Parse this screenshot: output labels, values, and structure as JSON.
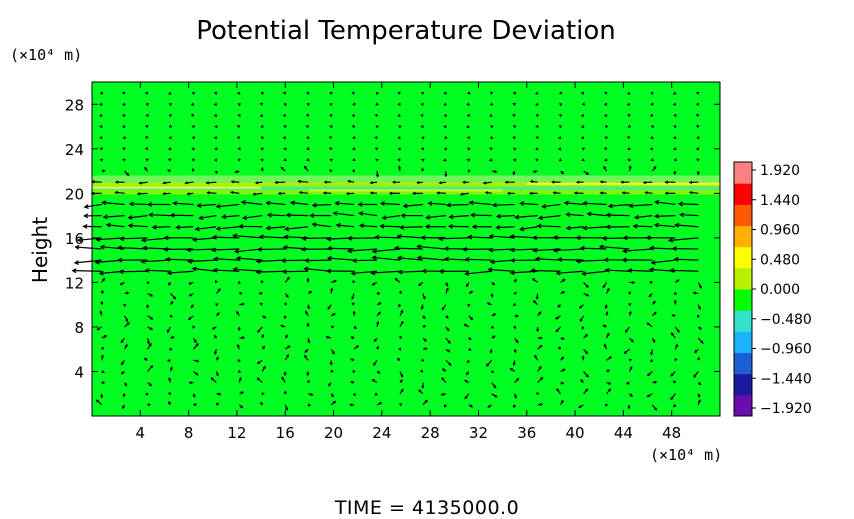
{
  "chart_data": {
    "type": "heatmap",
    "title": "Potential Temperature Deviation",
    "ylabel": "Height",
    "y_unit": "(×10⁴ m)",
    "x_unit": "(×10⁴ m)",
    "xlim": [
      0,
      52
    ],
    "ylim": [
      0,
      30
    ],
    "x_ticks": [
      "4",
      "8",
      "12",
      "16",
      "20",
      "24",
      "28",
      "32",
      "36",
      "40",
      "44",
      "48"
    ],
    "y_ticks": [
      "4",
      "8",
      "12",
      "16",
      "20",
      "24",
      "28"
    ],
    "colorbar": {
      "labels": [
        "1.920",
        "1.440",
        "0.960",
        "0.480",
        "0.000",
        "−0.480",
        "−0.960",
        "−1.440",
        "−1.920"
      ],
      "range": [
        -1.92,
        1.92
      ],
      "colors": [
        "#6a0dad",
        "#1a1aa0",
        "#1e5fd6",
        "#1ab4ff",
        "#33e0cc",
        "#00ff00",
        "#b8f000",
        "#ffff00",
        "#ffb000",
        "#ff5a00",
        "#ff0000",
        "#ff8080"
      ]
    },
    "background_value": 0.0,
    "features": [
      {
        "type": "perturbation_band",
        "y_range": [
          19.8,
          21.8
        ],
        "description_values": [
          0.48,
          -0.48
        ]
      }
    ],
    "wind_vectors": "arrow field overlay (strong westward flow between 11 and 19 ×10⁴ m height)",
    "footer": "TIME  =  4135000.0"
  },
  "colors": {
    "background": "#ffffff",
    "field": "#00ff20",
    "arrow": "#000000"
  }
}
